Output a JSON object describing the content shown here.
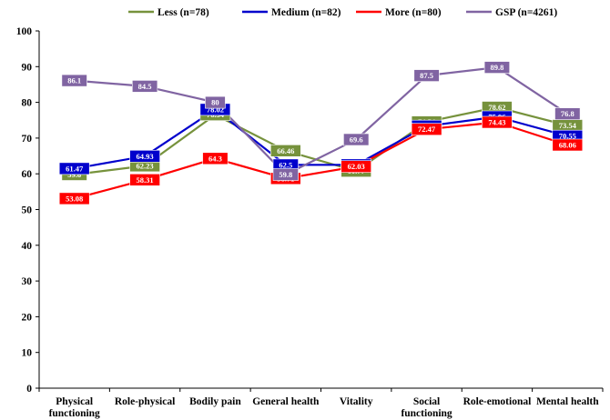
{
  "chart_data": {
    "type": "line",
    "categories": [
      "Physical functioning",
      "Role-physical",
      "Bodily pain",
      "General health",
      "Vitality",
      "Social functioning",
      "Role-emotional",
      "Mental health"
    ],
    "category_lines": [
      [
        "Physical",
        "functioning"
      ],
      [
        "Role-physical"
      ],
      [
        "Bodily pain"
      ],
      [
        "General health"
      ],
      [
        "Vitality"
      ],
      [
        "Social",
        "functioning"
      ],
      [
        "Role-emotional"
      ],
      [
        "Mental health"
      ]
    ],
    "ylim": [
      0,
      100
    ],
    "yticks": [
      0,
      10,
      20,
      30,
      40,
      50,
      60,
      70,
      80,
      90,
      100
    ],
    "grid": false,
    "legend_position": "top-center",
    "series": [
      {
        "name": "Less (n=78)",
        "color": "#76923c",
        "values": [
          59.8,
          62.23,
          76.54,
          66.46,
          60.77,
          74.54,
          78.62,
          73.54
        ],
        "labels": [
          "59.8",
          "62.23",
          "76.54",
          "66.46",
          "60.77",
          "74.54",
          "78.62",
          "73.54"
        ]
      },
      {
        "name": "Medium (n=82)",
        "color": "#0000cc",
        "values": [
          61.47,
          64.93,
          78.02,
          62.5,
          62.52,
          73.37,
          75.96,
          70.55
        ],
        "labels": [
          "61.47",
          "64.93",
          "78.02",
          "62.5",
          "62.52",
          "73.37",
          "75.96",
          "70.55"
        ]
      },
      {
        "name": "More (n=80)",
        "color": "#ff0000",
        "values": [
          53.08,
          58.31,
          64.3,
          58.71,
          62.03,
          72.47,
          74.43,
          68.06
        ],
        "labels": [
          "53.08",
          "58.31",
          "64.3",
          "58.71",
          "62.03",
          "72.47",
          "74.43",
          "68.06"
        ]
      },
      {
        "name": "GSP (n=4261)",
        "color": "#8064a2",
        "values": [
          86.1,
          84.5,
          80,
          59.8,
          69.6,
          87.5,
          89.8,
          76.8
        ],
        "labels": [
          "86.1",
          "84.5",
          "80",
          "59.8",
          "69.6",
          "87.5",
          "89.8",
          "76.8"
        ]
      }
    ]
  }
}
